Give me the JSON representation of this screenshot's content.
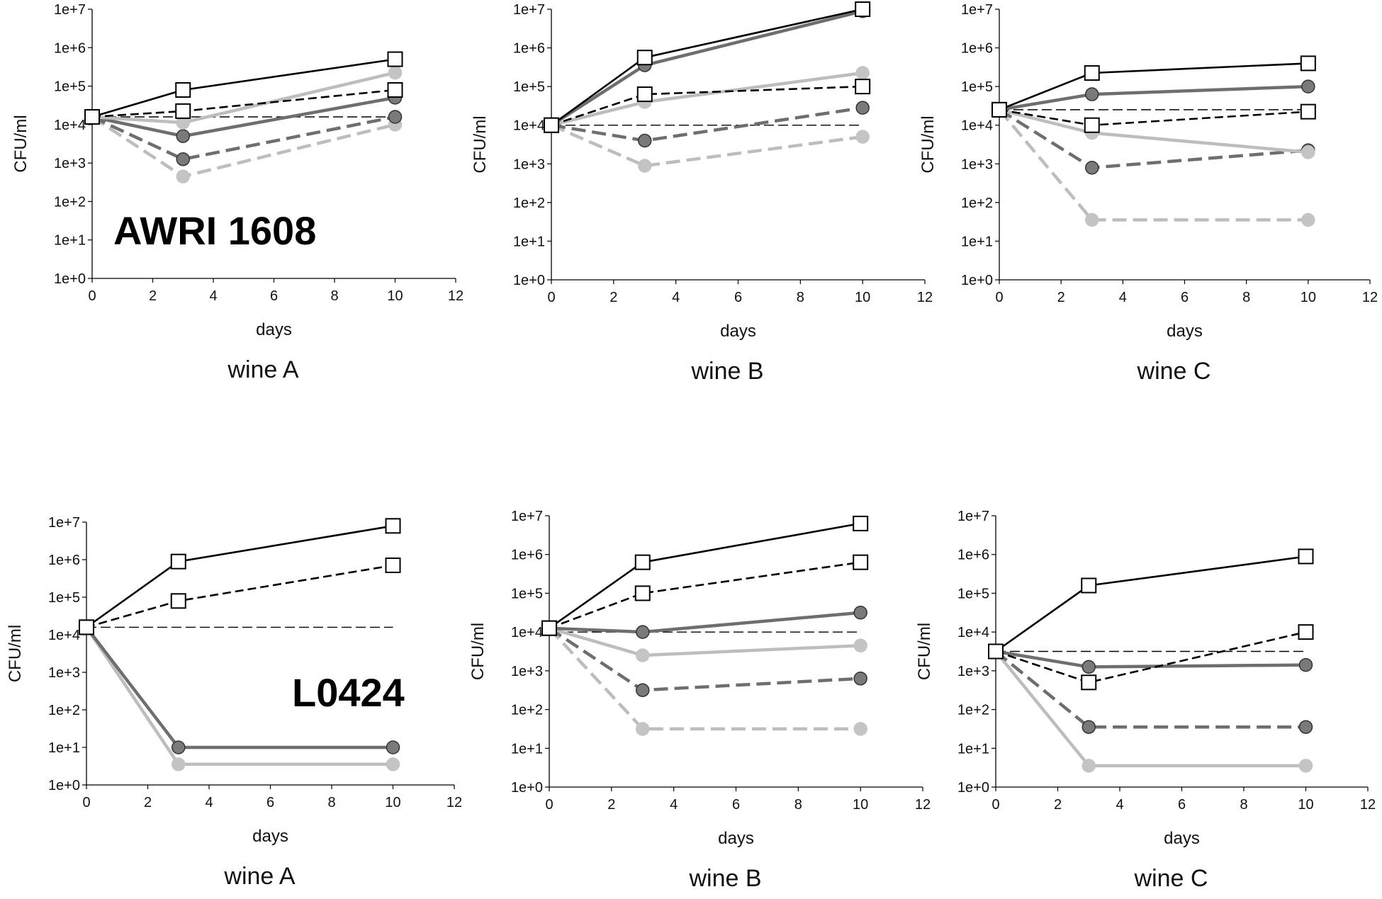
{
  "colors": {
    "black": "#000000",
    "dark_gray": "#6e6e6e",
    "light_gray": "#bdbdbd",
    "marker_dark": "#7a7a7a",
    "marker_light": "#c4c4c4",
    "background": "#ffffff"
  },
  "chart_data": [
    {
      "type": "line",
      "y_scale": "log10",
      "title": "wine A",
      "strain_label": "AWRI 1608",
      "xlabel": "days",
      "ylabel": "CFU/ml",
      "xlim": [
        0,
        12
      ],
      "xticks": [
        "0",
        "2",
        "4",
        "6",
        "8",
        "10",
        "12"
      ],
      "ylim_exp": [
        0,
        7
      ],
      "yticks": [
        "1e+0",
        "1e+1",
        "1e+2",
        "1e+3",
        "1e+4",
        "1e+5",
        "1e+6",
        "1e+7"
      ],
      "reference_line": {
        "x": [
          0,
          10
        ],
        "log_y": 4.2
      },
      "series": [
        {
          "color": "light_gray",
          "dash": "dashed",
          "marker": "circle",
          "x": [
            0,
            3,
            10
          ],
          "log_y": [
            4.2,
            2.65,
            4.0
          ]
        },
        {
          "color": "dark_gray",
          "dash": "dashed",
          "marker": "circle",
          "x": [
            0,
            3,
            10
          ],
          "log_y": [
            4.2,
            3.1,
            4.2
          ]
        },
        {
          "color": "dark_gray",
          "dash": "solid",
          "marker": "circle",
          "x": [
            0,
            3,
            10
          ],
          "log_y": [
            4.2,
            3.7,
            4.7
          ]
        },
        {
          "color": "light_gray",
          "dash": "solid",
          "marker": "circle",
          "x": [
            0,
            3,
            10
          ],
          "log_y": [
            4.2,
            4.05,
            5.35
          ]
        },
        {
          "color": "black",
          "dash": "dashed",
          "marker": "square",
          "x": [
            0,
            3,
            10
          ],
          "log_y": [
            4.2,
            4.35,
            4.9
          ]
        },
        {
          "color": "black",
          "dash": "solid",
          "marker": "square",
          "x": [
            0,
            3,
            10
          ],
          "log_y": [
            4.2,
            4.9,
            5.7
          ]
        }
      ]
    },
    {
      "type": "line",
      "y_scale": "log10",
      "title": "wine B",
      "strain_label": "",
      "xlabel": "days",
      "ylabel": "CFU/ml",
      "xlim": [
        0,
        12
      ],
      "xticks": [
        "0",
        "2",
        "4",
        "6",
        "8",
        "10",
        "12"
      ],
      "ylim_exp": [
        0,
        7
      ],
      "yticks": [
        "1e+0",
        "1e+1",
        "1e+2",
        "1e+3",
        "1e+4",
        "1e+5",
        "1e+6",
        "1e+7"
      ],
      "reference_line": {
        "x": [
          0,
          10
        ],
        "log_y": 4.0
      },
      "series": [
        {
          "color": "light_gray",
          "dash": "dashed",
          "marker": "circle",
          "x": [
            0,
            3,
            10
          ],
          "log_y": [
            4.0,
            2.95,
            3.7
          ]
        },
        {
          "color": "dark_gray",
          "dash": "dashed",
          "marker": "circle",
          "x": [
            0,
            3,
            10
          ],
          "log_y": [
            4.0,
            3.6,
            4.45
          ]
        },
        {
          "color": "light_gray",
          "dash": "solid",
          "marker": "circle",
          "x": [
            0,
            3,
            10
          ],
          "log_y": [
            4.0,
            4.6,
            5.35
          ]
        },
        {
          "color": "black",
          "dash": "dashed",
          "marker": "square",
          "x": [
            0,
            3,
            10
          ],
          "log_y": [
            4.0,
            4.8,
            5.0
          ]
        },
        {
          "color": "dark_gray",
          "dash": "solid",
          "marker": "circle",
          "x": [
            0,
            3,
            10
          ],
          "log_y": [
            4.0,
            5.55,
            6.95
          ]
        },
        {
          "color": "black",
          "dash": "solid",
          "marker": "square",
          "x": [
            0,
            3,
            10
          ],
          "log_y": [
            4.0,
            5.75,
            7.0
          ]
        }
      ]
    },
    {
      "type": "line",
      "y_scale": "log10",
      "title": "wine C",
      "strain_label": "",
      "xlabel": "days",
      "ylabel": "CFU/ml",
      "xlim": [
        0,
        12
      ],
      "xticks": [
        "0",
        "2",
        "4",
        "6",
        "8",
        "10",
        "12"
      ],
      "ylim_exp": [
        0,
        7
      ],
      "yticks": [
        "1e+0",
        "1e+1",
        "1e+2",
        "1e+3",
        "1e+4",
        "1e+5",
        "1e+6",
        "1e+7"
      ],
      "reference_line": {
        "x": [
          0,
          10
        ],
        "log_y": 4.4
      },
      "series": [
        {
          "color": "light_gray",
          "dash": "dashed",
          "marker": "circle",
          "x": [
            0,
            3,
            10
          ],
          "log_y": [
            4.4,
            1.55,
            1.55
          ]
        },
        {
          "color": "dark_gray",
          "dash": "dashed",
          "marker": "circle",
          "x": [
            0,
            3,
            10
          ],
          "log_y": [
            4.4,
            2.9,
            3.35
          ]
        },
        {
          "color": "light_gray",
          "dash": "solid",
          "marker": "circle",
          "x": [
            0,
            3,
            10
          ],
          "log_y": [
            4.4,
            3.8,
            3.3
          ]
        },
        {
          "color": "black",
          "dash": "dashed",
          "marker": "square",
          "x": [
            0,
            3,
            10
          ],
          "log_y": [
            4.4,
            4.0,
            4.35
          ]
        },
        {
          "color": "dark_gray",
          "dash": "solid",
          "marker": "circle",
          "x": [
            0,
            3,
            10
          ],
          "log_y": [
            4.4,
            4.8,
            5.0
          ]
        },
        {
          "color": "black",
          "dash": "solid",
          "marker": "square",
          "x": [
            0,
            3,
            10
          ],
          "log_y": [
            4.4,
            5.35,
            5.6
          ]
        }
      ]
    },
    {
      "type": "line",
      "y_scale": "log10",
      "title": "wine A",
      "strain_label": "L0424",
      "xlabel": "days",
      "ylabel": "CFU/ml",
      "xlim": [
        0,
        12
      ],
      "xticks": [
        "0",
        "2",
        "4",
        "6",
        "8",
        "10",
        "12"
      ],
      "ylim_exp": [
        0,
        7
      ],
      "yticks": [
        "1e+0",
        "1e+1",
        "1e+2",
        "1e+3",
        "1e+4",
        "1e+5",
        "1e+6",
        "1e+7"
      ],
      "reference_line": {
        "x": [
          0,
          10
        ],
        "log_y": 4.2
      },
      "series": [
        {
          "color": "light_gray",
          "dash": "solid",
          "marker": "circle",
          "x": [
            0,
            3,
            10
          ],
          "log_y": [
            4.2,
            0.55,
            0.55
          ]
        },
        {
          "color": "dark_gray",
          "dash": "solid",
          "marker": "circle",
          "x": [
            0,
            3,
            10
          ],
          "log_y": [
            4.2,
            1.0,
            1.0
          ]
        },
        {
          "color": "black",
          "dash": "dashed",
          "marker": "square",
          "x": [
            0,
            3,
            10
          ],
          "log_y": [
            4.2,
            4.9,
            5.85
          ]
        },
        {
          "color": "black",
          "dash": "solid",
          "marker": "square",
          "x": [
            0,
            3,
            10
          ],
          "log_y": [
            4.2,
            5.95,
            6.9
          ]
        }
      ]
    },
    {
      "type": "line",
      "y_scale": "log10",
      "title": "wine B",
      "strain_label": "",
      "xlabel": "days",
      "ylabel": "CFU/ml",
      "xlim": [
        0,
        12
      ],
      "xticks": [
        "0",
        "2",
        "4",
        "6",
        "8",
        "10",
        "12"
      ],
      "ylim_exp": [
        0,
        7
      ],
      "yticks": [
        "1e+0",
        "1e+1",
        "1e+2",
        "1e+3",
        "1e+4",
        "1e+5",
        "1e+6",
        "1e+7"
      ],
      "reference_line": {
        "x": [
          0,
          10
        ],
        "log_y": 4.0
      },
      "series": [
        {
          "color": "light_gray",
          "dash": "dashed",
          "marker": "circle",
          "x": [
            0,
            3,
            10
          ],
          "log_y": [
            4.1,
            1.5,
            1.5
          ]
        },
        {
          "color": "dark_gray",
          "dash": "dashed",
          "marker": "circle",
          "x": [
            0,
            3,
            10
          ],
          "log_y": [
            4.1,
            2.5,
            2.8
          ]
        },
        {
          "color": "light_gray",
          "dash": "solid",
          "marker": "circle",
          "x": [
            0,
            3,
            10
          ],
          "log_y": [
            4.1,
            3.4,
            3.65
          ]
        },
        {
          "color": "dark_gray",
          "dash": "solid",
          "marker": "circle",
          "x": [
            0,
            3,
            10
          ],
          "log_y": [
            4.1,
            4.0,
            4.5
          ]
        },
        {
          "color": "black",
          "dash": "dashed",
          "marker": "square",
          "x": [
            0,
            3,
            10
          ],
          "log_y": [
            4.1,
            5.0,
            5.8
          ]
        },
        {
          "color": "black",
          "dash": "solid",
          "marker": "square",
          "x": [
            0,
            3,
            10
          ],
          "log_y": [
            4.1,
            5.8,
            6.8
          ]
        }
      ]
    },
    {
      "type": "line",
      "y_scale": "log10",
      "title": "wine C",
      "strain_label": "",
      "xlabel": "days",
      "ylabel": "CFU/ml",
      "xlim": [
        0,
        12
      ],
      "xticks": [
        "0",
        "2",
        "4",
        "6",
        "8",
        "10",
        "12"
      ],
      "ylim_exp": [
        0,
        7
      ],
      "yticks": [
        "1e+0",
        "1e+1",
        "1e+2",
        "1e+3",
        "1e+4",
        "1e+5",
        "1e+6",
        "1e+7"
      ],
      "reference_line": {
        "x": [
          0,
          10
        ],
        "log_y": 3.5
      },
      "series": [
        {
          "color": "light_gray",
          "dash": "solid",
          "marker": "circle",
          "x": [
            0,
            3,
            10
          ],
          "log_y": [
            3.5,
            0.55,
            0.55
          ]
        },
        {
          "color": "dark_gray",
          "dash": "dashed",
          "marker": "circle",
          "x": [
            0,
            3,
            10
          ],
          "log_y": [
            3.5,
            1.55,
            1.55
          ]
        },
        {
          "color": "dark_gray",
          "dash": "solid",
          "marker": "circle",
          "x": [
            0,
            3,
            10
          ],
          "log_y": [
            3.5,
            3.1,
            3.15
          ]
        },
        {
          "color": "black",
          "dash": "dashed",
          "marker": "square",
          "x": [
            0,
            3,
            10
          ],
          "log_y": [
            3.5,
            2.7,
            4.0
          ]
        },
        {
          "color": "black",
          "dash": "solid",
          "marker": "square",
          "x": [
            0,
            3,
            10
          ],
          "log_y": [
            3.5,
            5.2,
            5.95
          ]
        }
      ]
    }
  ]
}
